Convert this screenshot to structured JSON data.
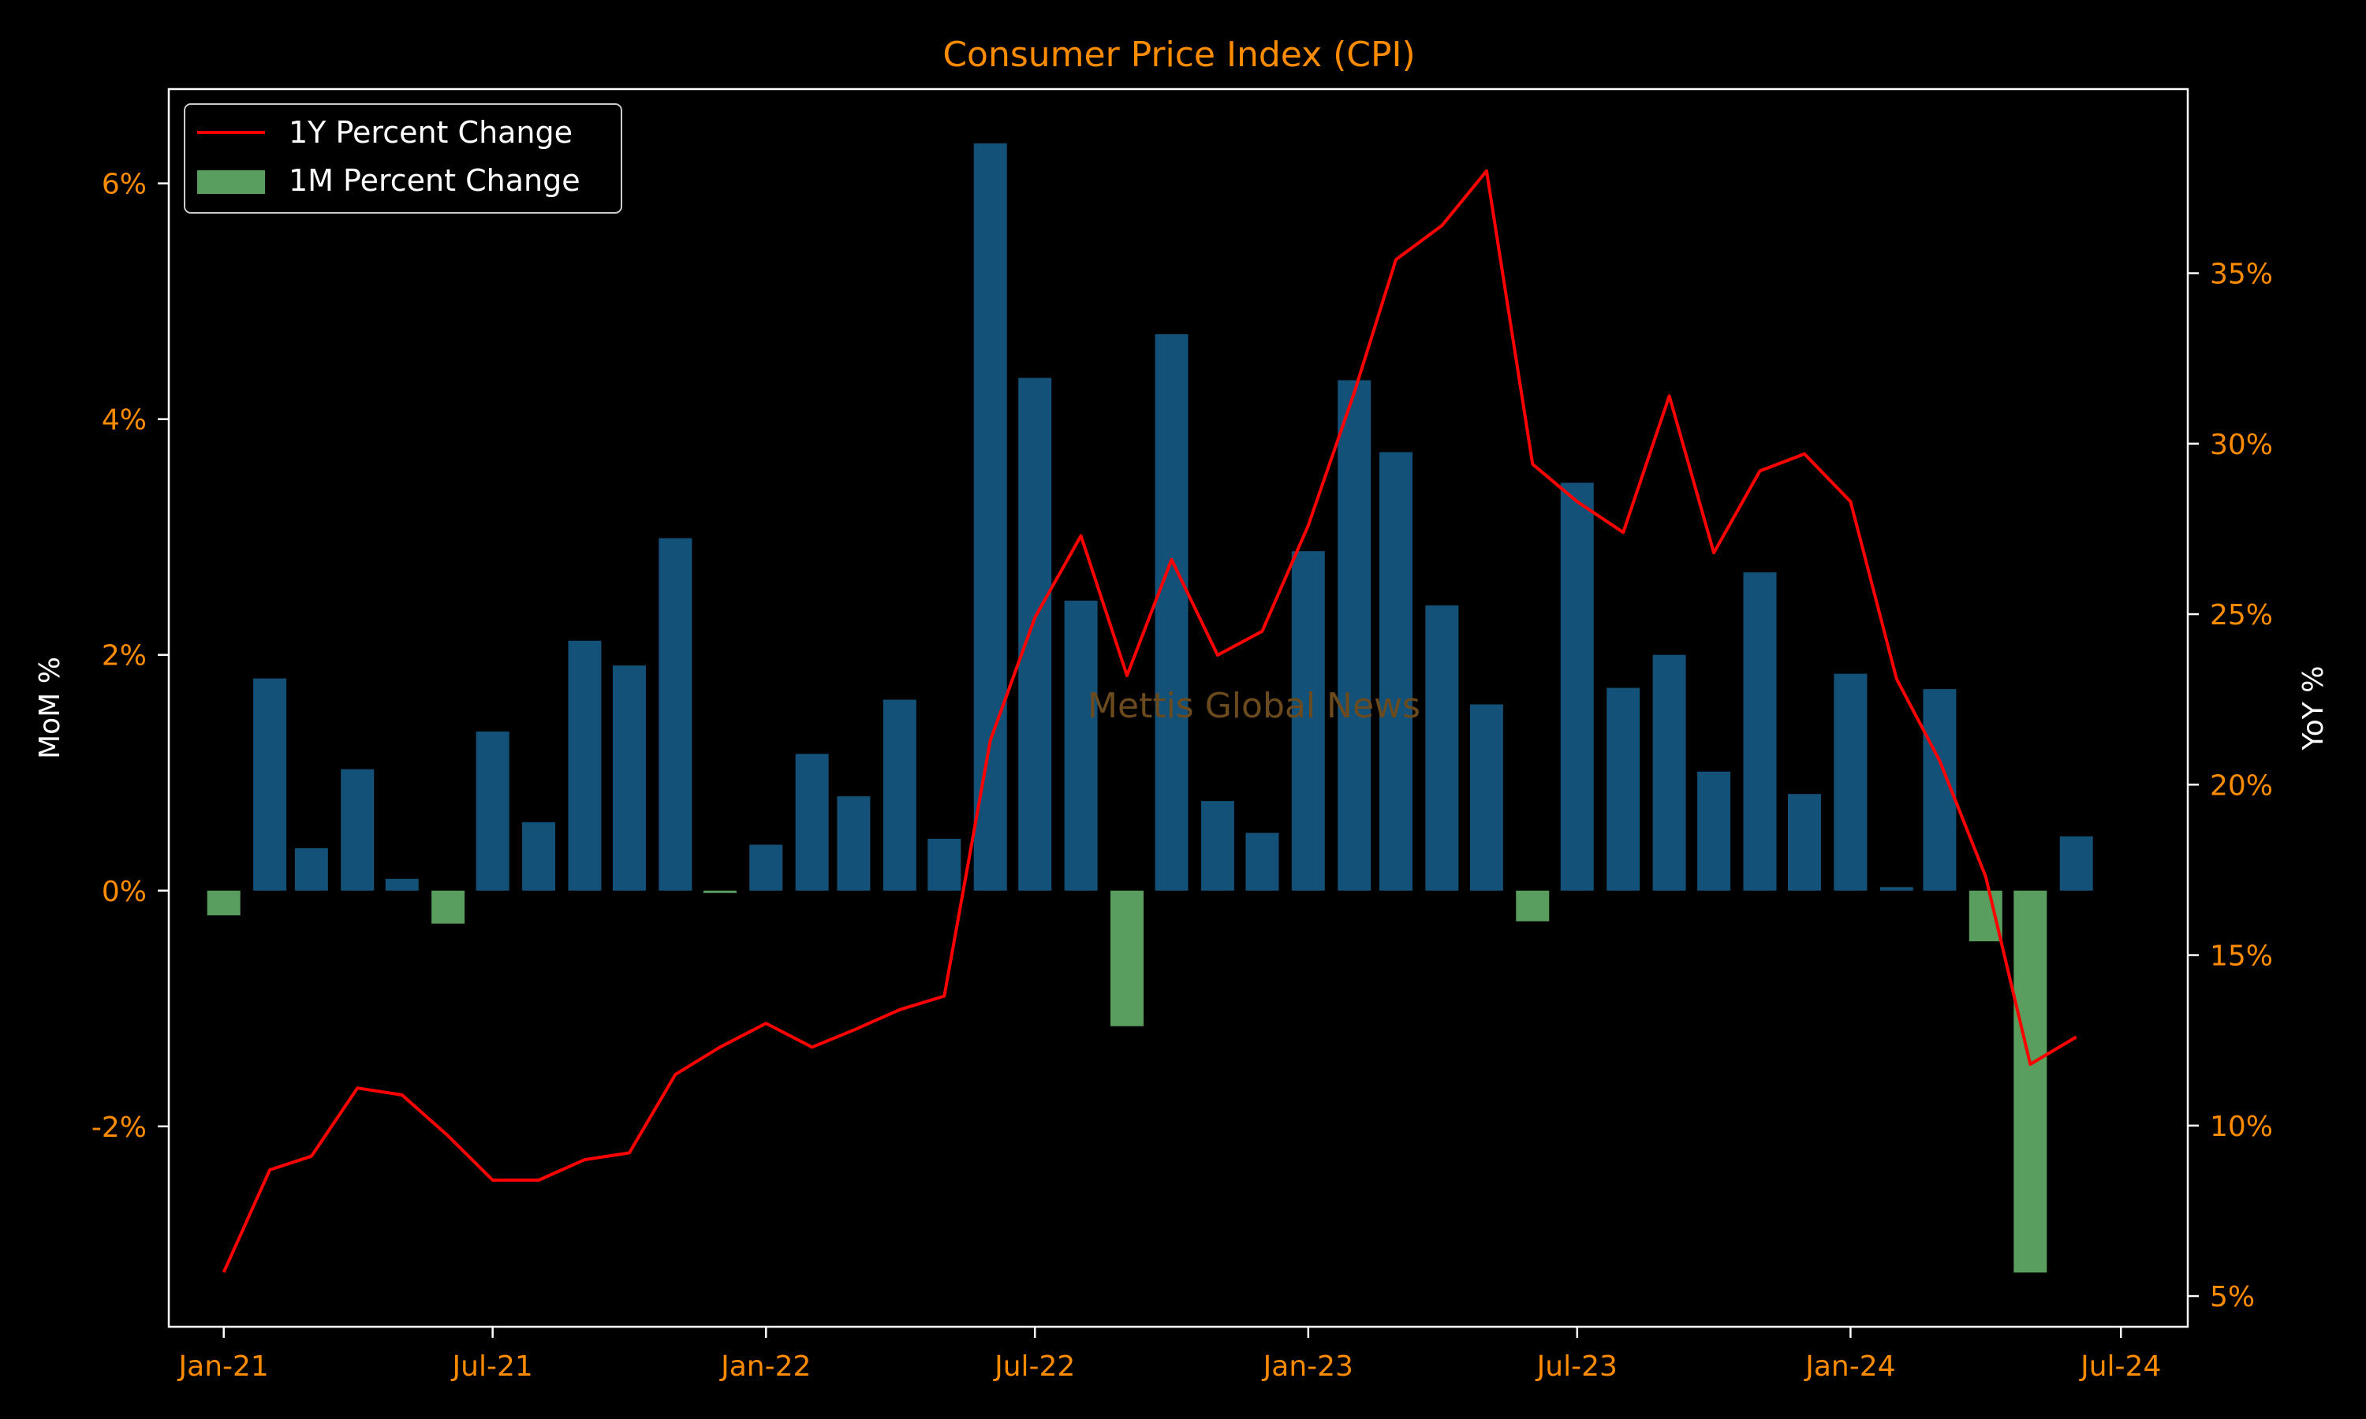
{
  "chart_data": {
    "type": "bar",
    "title": "Consumer Price Index (CPI)",
    "watermark": "Mettis Global News",
    "ylabel_left": "MoM %",
    "ylabel_right": "YoY %",
    "x_tick_labels": [
      "Jan-21",
      "Jul-21",
      "Jan-22",
      "Jul-22",
      "Jan-23",
      "Jul-23",
      "Jan-24",
      "Jul-24"
    ],
    "x_ticks": [
      "2021-01",
      "2021-07",
      "2022-01",
      "2022-07",
      "2023-01",
      "2023-07",
      "2024-01",
      "2024-07"
    ],
    "y_left_ticks": [
      {
        "value": -2,
        "label": "-2%"
      },
      {
        "value": 0,
        "label": "0%"
      },
      {
        "value": 2,
        "label": "2%"
      },
      {
        "value": 4,
        "label": "4%"
      },
      {
        "value": 6,
        "label": "6%"
      }
    ],
    "y_right_ticks": [
      {
        "value": 5,
        "label": "5%"
      },
      {
        "value": 10,
        "label": "10%"
      },
      {
        "value": 15,
        "label": "15%"
      },
      {
        "value": 20,
        "label": "20%"
      },
      {
        "value": 25,
        "label": "25%"
      },
      {
        "value": 30,
        "label": "30%"
      },
      {
        "value": 35,
        "label": "35%"
      }
    ],
    "xlim": [
      "2020-11-25",
      "2024-08-15"
    ],
    "ylim_left": [
      -3.7,
      6.8
    ],
    "ylim_right": [
      4.1,
      40.4
    ],
    "legend": {
      "position": "top-left",
      "entries": [
        {
          "label": "1Y Percent Change",
          "color": "#ff0000",
          "kind": "line"
        },
        {
          "label": "1M Percent Change",
          "color": "#5a9e5f",
          "kind": "bar"
        }
      ]
    },
    "colors": {
      "positive_bar": "#135178",
      "negative_bar": "#5a9e5f",
      "line": "#ff0000",
      "tick_labels": "#ff8c00",
      "title": "#ff8c00",
      "axis_labels": "#ffffff",
      "watermark": "#6b4a1e",
      "frame": "#ffffff",
      "background": "#000000"
    },
    "x": [
      "2021-01",
      "2021-02",
      "2021-03",
      "2021-04",
      "2021-05",
      "2021-06",
      "2021-07",
      "2021-08",
      "2021-09",
      "2021-10",
      "2021-11",
      "2021-12",
      "2022-01",
      "2022-02",
      "2022-03",
      "2022-04",
      "2022-05",
      "2022-06",
      "2022-07",
      "2022-08",
      "2022-09",
      "2022-10",
      "2022-11",
      "2022-12",
      "2023-01",
      "2023-02",
      "2023-03",
      "2023-04",
      "2023-05",
      "2023-06",
      "2023-07",
      "2023-08",
      "2023-09",
      "2023-10",
      "2023-11",
      "2023-12",
      "2024-01",
      "2024-02",
      "2024-03",
      "2024-04",
      "2024-05",
      "2024-06"
    ],
    "series": [
      {
        "name": "1M Percent Change",
        "axis": "left",
        "kind": "bar",
        "values": [
          -0.21,
          1.8,
          0.36,
          1.03,
          0.1,
          -0.28,
          1.35,
          0.58,
          2.12,
          1.91,
          2.99,
          -0.02,
          0.39,
          1.16,
          0.8,
          1.62,
          0.44,
          6.34,
          4.35,
          2.46,
          -1.15,
          4.72,
          0.76,
          0.49,
          2.88,
          4.33,
          3.72,
          2.42,
          1.58,
          -0.26,
          3.46,
          1.72,
          2.0,
          1.01,
          2.7,
          0.82,
          1.84,
          0.03,
          1.71,
          -0.43,
          -3.24,
          0.46
        ]
      },
      {
        "name": "1Y Percent Change",
        "axis": "right",
        "kind": "line",
        "values": [
          5.7,
          8.7,
          9.1,
          11.1,
          10.9,
          9.7,
          8.4,
          8.4,
          9.0,
          9.2,
          11.5,
          12.3,
          13.0,
          12.3,
          12.8,
          13.4,
          13.8,
          21.3,
          24.9,
          27.3,
          23.2,
          26.6,
          23.8,
          24.5,
          27.6,
          31.5,
          35.4,
          36.4,
          38.0,
          29.4,
          28.3,
          27.4,
          31.4,
          26.8,
          29.2,
          29.7,
          28.3,
          23.1,
          20.7,
          17.3,
          11.8,
          12.6
        ]
      }
    ]
  }
}
